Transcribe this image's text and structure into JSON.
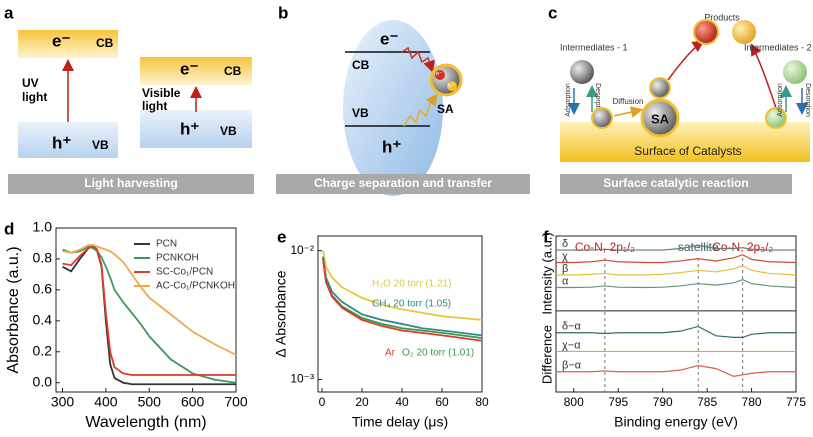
{
  "diagrams": {
    "a": {
      "label": "a",
      "left": {
        "electron": "e⁻",
        "cb": "CB",
        "hole": "h⁺",
        "vb": "VB",
        "light": [
          "UV",
          "light"
        ]
      },
      "right": {
        "electron": "e⁻",
        "cb": "CB",
        "hole": "h⁺",
        "vb": "VB",
        "light": [
          "Visible",
          "light"
        ]
      },
      "caption": "Light harvesting"
    },
    "b": {
      "label": "b",
      "electron": "e⁻",
      "cb": "CB",
      "vb": "VB",
      "hole": "h⁺",
      "sa": "SA",
      "sa_electron": "e⁻",
      "sa_hole": "h⁺",
      "caption": "Charge separation and transfer"
    },
    "c": {
      "label": "c",
      "intermediates_1": "Intermediates - 1",
      "products": "Products",
      "intermediates_2": "Intermediates - 2",
      "adsorption_1": "Adsorption",
      "desorption_1": "Desorption",
      "diffusion": "Diffusion",
      "sa": "SA",
      "adsorption_2": "Adsorption",
      "desorption_2": "Desorption",
      "surface": "Surface of Catalysts",
      "caption": "Surface catalytic reaction"
    }
  },
  "chart_data": [
    {
      "type": "line",
      "panel_label": "d",
      "xlabel": "Wavelength (nm)",
      "ylabel": "Absorbance (a.u.)",
      "x": [
        300,
        320,
        340,
        360,
        370,
        380,
        390,
        400,
        410,
        420,
        440,
        460,
        480,
        500,
        550,
        600,
        650,
        700
      ],
      "xlim": [
        285,
        700
      ],
      "xticks": [
        300,
        400,
        500,
        600,
        700
      ],
      "ylim": [
        -0.06,
        1.0
      ],
      "yticks": [
        {
          "value": 0,
          "label": "0.0"
        },
        0.2,
        0.4,
        0.6,
        0.8,
        {
          "value": 1,
          "label": "1.0"
        }
      ],
      "legend": "upper right",
      "series": [
        {
          "name": "PCN",
          "color": "#333333",
          "values": [
            0.75,
            0.72,
            0.8,
            0.87,
            0.88,
            0.85,
            0.75,
            0.4,
            0.12,
            0.03,
            0.0,
            -0.01,
            -0.01,
            -0.01,
            -0.01,
            -0.01,
            -0.01,
            -0.01
          ]
        },
        {
          "name": "PCNKOH",
          "color": "#3a9a5a",
          "values": [
            0.86,
            0.84,
            0.85,
            0.88,
            0.87,
            0.85,
            0.81,
            0.75,
            0.68,
            0.6,
            0.52,
            0.45,
            0.38,
            0.3,
            0.15,
            0.06,
            0.02,
            0.0
          ]
        },
        {
          "name": "SC-Co₁/PCN",
          "color": "#e03a2a",
          "values": [
            0.77,
            0.76,
            0.82,
            0.87,
            0.89,
            0.86,
            0.76,
            0.45,
            0.2,
            0.1,
            0.06,
            0.05,
            0.05,
            0.05,
            0.05,
            0.05,
            0.05,
            0.05
          ]
        },
        {
          "name": "AC-Co₁/PCNKOH",
          "color": "#f0a850",
          "values": [
            0.85,
            0.84,
            0.86,
            0.89,
            0.89,
            0.88,
            0.87,
            0.86,
            0.85,
            0.83,
            0.78,
            0.7,
            0.62,
            0.55,
            0.44,
            0.33,
            0.25,
            0.18
          ]
        }
      ]
    },
    {
      "type": "line",
      "panel_label": "e",
      "xlabel": "Time delay (μs)",
      "ylabel": "Δ Absorbance",
      "log_y": true,
      "x": [
        0.5,
        2,
        5,
        10,
        20,
        30,
        40,
        50,
        60,
        70,
        80
      ],
      "xlim": [
        -2,
        80
      ],
      "xticks": [
        0,
        20,
        40,
        60,
        80
      ],
      "ylim": [
        0.0008,
        0.013
      ],
      "yticks": [
        {
          "value": 0.01,
          "label": "10⁻²"
        },
        {
          "value": 0.001,
          "label": "10⁻³"
        }
      ],
      "series": [
        {
          "name": "H₂O 20 torr (1.21)",
          "color": "#e8c832",
          "values": [
            0.01,
            0.0075,
            0.0062,
            0.0052,
            0.0043,
            0.0038,
            0.0035,
            0.0033,
            0.0031,
            0.003,
            0.0029
          ]
        },
        {
          "name": "CH₄ 20 torr (1.05)",
          "color": "#2f8a8a",
          "values": [
            0.009,
            0.0062,
            0.0048,
            0.004,
            0.0032,
            0.0029,
            0.0027,
            0.0025,
            0.0024,
            0.0023,
            0.0022
          ]
        },
        {
          "name": "O₂ 20 torr (1.01)",
          "color": "#3a9a4a",
          "values": [
            0.0088,
            0.0058,
            0.0045,
            0.0037,
            0.003,
            0.0027,
            0.0025,
            0.0024,
            0.0023,
            0.0022,
            0.0021
          ]
        },
        {
          "name": "Ar",
          "color": "#e03a2a",
          "values": [
            0.0087,
            0.0057,
            0.0044,
            0.0036,
            0.0029,
            0.0026,
            0.0024,
            0.0023,
            0.0022,
            0.0021,
            0.002
          ]
        }
      ]
    },
    {
      "type": "line",
      "panel_label": "f",
      "xlabel": "Binding energy (eV)",
      "ylabels": [
        "Intensity (a.u.)",
        "Difference"
      ],
      "x": [
        802,
        800,
        798,
        796.5,
        795,
        792,
        790,
        788,
        786,
        784,
        782,
        781,
        780,
        778,
        775
      ],
      "xlim": [
        802,
        775
      ],
      "xticks": [
        800,
        795,
        790,
        785,
        780,
        775
      ],
      "ylim": [
        0,
        10
      ],
      "vlines": [
        796.5,
        786,
        781
      ],
      "annotations": [
        "Co-N, 2p₁/₂",
        "satellite",
        "Co-N, 2p₃/₂"
      ],
      "series": [
        {
          "name": "δ",
          "color": "#5b7f75",
          "values": [
            9.1,
            9.1,
            9.1,
            9.15,
            9.1,
            9.1,
            9.1,
            9.2,
            9.4,
            9.2,
            9.2,
            9.25,
            9.15,
            9.1,
            9.1
          ]
        },
        {
          "name": "χ",
          "color": "#d04a3a",
          "values": [
            8.3,
            8.3,
            8.35,
            8.45,
            8.35,
            8.3,
            8.3,
            8.4,
            8.55,
            8.4,
            8.6,
            8.8,
            8.5,
            8.35,
            8.3
          ]
        },
        {
          "name": "β",
          "color": "#e6c23a",
          "values": [
            7.5,
            7.5,
            7.55,
            7.6,
            7.5,
            7.5,
            7.55,
            7.65,
            7.8,
            7.7,
            7.9,
            8.1,
            7.8,
            7.6,
            7.5
          ]
        },
        {
          "name": "α",
          "color": "#5e9a6e",
          "values": [
            6.7,
            6.7,
            6.72,
            6.8,
            6.72,
            6.7,
            6.72,
            6.8,
            6.95,
            6.85,
            7.0,
            7.2,
            6.95,
            6.8,
            6.7
          ]
        },
        {
          "name": "δ−α",
          "color": "#2f6f62",
          "values": [
            3.8,
            3.8,
            3.8,
            3.75,
            3.8,
            3.8,
            3.8,
            3.9,
            4.2,
            3.6,
            3.5,
            3.5,
            3.7,
            3.8,
            3.8
          ]
        },
        {
          "name": "χ−α",
          "color": "#e8a040",
          "values": [
            2.6,
            2.6,
            2.6,
            2.6,
            2.6,
            2.6,
            2.6,
            2.6,
            2.6,
            2.6,
            2.6,
            2.6,
            2.6,
            2.6,
            2.6
          ]
        },
        {
          "name": "β−α",
          "color": "#e05a4a",
          "values": [
            1.3,
            1.3,
            1.3,
            1.35,
            1.3,
            1.3,
            1.3,
            1.4,
            1.7,
            1.5,
            1.0,
            1.1,
            1.2,
            1.3,
            1.3
          ]
        }
      ]
    }
  ]
}
